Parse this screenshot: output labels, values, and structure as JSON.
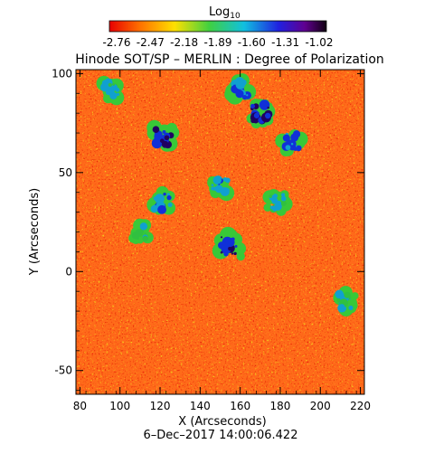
{
  "colorbar": {
    "label": "Log",
    "label_sub": "10",
    "ticks": [
      "-2.76",
      "-2.47",
      "-2.18",
      "-1.89",
      "-1.60",
      "-1.31",
      "-1.02"
    ]
  },
  "colors": {
    "background": "#ff6a1a",
    "speckle_red": "#e8200a",
    "speckle_yellow": "#f4d820",
    "speckle_green": "#3ec040",
    "cluster_blue": "#1030d8",
    "cluster_dark": "#200060"
  },
  "chart_data": {
    "type": "heatmap",
    "title": "Hinode SOT/SP – MERLIN : Degree of Polarization",
    "xlabel": "X (Arcseconds)",
    "ylabel": "Y (Arcseconds)",
    "xlim": [
      78,
      222
    ],
    "ylim": [
      -62,
      102
    ],
    "xticks": [
      80,
      100,
      120,
      140,
      160,
      180,
      200,
      220
    ],
    "yticks": [
      -50,
      0,
      50,
      100
    ],
    "colorscale_range": [
      -2.76,
      -1.02
    ],
    "timestamp": "6–Dec–2017 14:00:06.422",
    "features": [
      {
        "x": 122,
        "y": 68,
        "value": -1.1
      },
      {
        "x": 170,
        "y": 80,
        "value": -1.1
      },
      {
        "x": 155,
        "y": 13,
        "value": -1.05
      },
      {
        "x": 160,
        "y": 92,
        "value": -1.3
      },
      {
        "x": 186,
        "y": 66,
        "value": -1.2
      },
      {
        "x": 150,
        "y": 43,
        "value": -1.4
      },
      {
        "x": 121,
        "y": 35,
        "value": -1.3
      },
      {
        "x": 96,
        "y": 92,
        "value": -1.5
      },
      {
        "x": 178,
        "y": 35,
        "value": -1.5
      },
      {
        "x": 213,
        "y": -15,
        "value": -1.6
      },
      {
        "x": 110,
        "y": 20,
        "value": -1.7
      }
    ]
  }
}
